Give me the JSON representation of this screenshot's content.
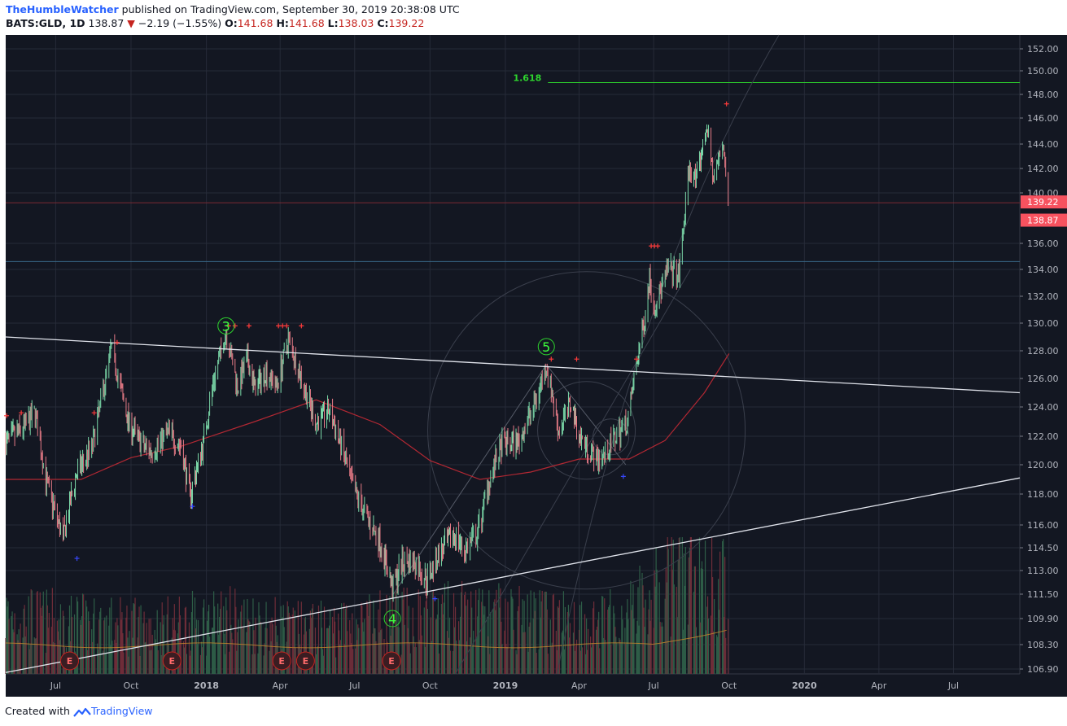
{
  "header": {
    "author": "TheHumbleWatcher",
    "published_text": " published on TradingView.com, September 30, 2019 20:38:08 UTC",
    "symbol": "BATS:GLD, 1D",
    "last": "138.87",
    "change": "−2.19 (−1.55%)",
    "o_label": "O:",
    "o_value": "141.68",
    "h_label": "H:",
    "h_value": "141.68",
    "l_label": "L:",
    "l_value": "138.03",
    "c_label": "C:",
    "c_value": "139.22"
  },
  "footer": {
    "created_with": "Created with",
    "brand": "TradingView"
  },
  "colors": {
    "background": "#131722",
    "up": "#7ad8a8",
    "down": "#e57a86",
    "vol_up": "#2e5d47",
    "vol_down": "#6e2d39",
    "trendline": "#e0e3eb",
    "ma": "#b22833",
    "fib": "#2ed52e",
    "wave_label": "#3cff3c",
    "hline_red": "#7a2a33",
    "hline_blue": "#3a6a8a",
    "last_price_bg": "#f7525f"
  },
  "chart_data": {
    "type": "candlestick",
    "title": "BATS:GLD, 1D",
    "x_range": [
      "2017-05-01",
      "2020-09-20"
    ],
    "x_tick_labels": [
      {
        "date": "2017-07-01",
        "label": "Jul"
      },
      {
        "date": "2017-10-01",
        "label": "Oct"
      },
      {
        "date": "2018-01-01",
        "label": "2018"
      },
      {
        "date": "2018-04-01",
        "label": "Apr"
      },
      {
        "date": "2018-07-01",
        "label": "Jul"
      },
      {
        "date": "2018-10-01",
        "label": "Oct"
      },
      {
        "date": "2019-01-01",
        "label": "2019"
      },
      {
        "date": "2019-04-01",
        "label": "Apr"
      },
      {
        "date": "2019-07-01",
        "label": "Jul"
      },
      {
        "date": "2019-10-01",
        "label": "Oct"
      },
      {
        "date": "2020-01-01",
        "label": "2020"
      },
      {
        "date": "2020-04-01",
        "label": "Apr"
      },
      {
        "date": "2020-07-01",
        "label": "Jul"
      }
    ],
    "y_ticks": [
      {
        "value": 152,
        "label": "152.00"
      },
      {
        "value": 150,
        "label": "150.00"
      },
      {
        "value": 148,
        "label": "148.00"
      },
      {
        "value": 146,
        "label": "146.00"
      },
      {
        "value": 144,
        "label": "144.00"
      },
      {
        "value": 142,
        "label": "142.00"
      },
      {
        "value": 140,
        "label": "140.00"
      },
      {
        "value": 136,
        "label": "136.00"
      },
      {
        "value": 134,
        "label": "134.00"
      },
      {
        "value": 132,
        "label": "132.00"
      },
      {
        "value": 130,
        "label": "130.00"
      },
      {
        "value": 128,
        "label": "128.00"
      },
      {
        "value": 126,
        "label": "126.00"
      },
      {
        "value": 124,
        "label": "124.00"
      },
      {
        "value": 122,
        "label": "122.00"
      },
      {
        "value": 120,
        "label": "120.00"
      },
      {
        "value": 118,
        "label": "118.00"
      },
      {
        "value": 116,
        "label": "116.00"
      },
      {
        "value": 114.5,
        "label": "114.50"
      },
      {
        "value": 113,
        "label": "113.00"
      },
      {
        "value": 111.5,
        "label": "111.50"
      },
      {
        "value": 109.9,
        "label": "109.90"
      },
      {
        "value": 108.3,
        "label": "108.30"
      },
      {
        "value": 106.9,
        "label": "106.90"
      }
    ],
    "price_path": [
      [
        "2017-05-01",
        121.6
      ],
      [
        "2017-05-20",
        122.4
      ],
      [
        "2017-06-06",
        123.6
      ],
      [
        "2017-06-20",
        118.7
      ],
      [
        "2017-07-10",
        115.1
      ],
      [
        "2017-07-26",
        119.3
      ],
      [
        "2017-08-15",
        121.3
      ],
      [
        "2017-09-07",
        128.2
      ],
      [
        "2017-09-28",
        122.9
      ],
      [
        "2017-10-16",
        121.3
      ],
      [
        "2017-10-27",
        120.9
      ],
      [
        "2017-11-15",
        122.3
      ],
      [
        "2017-12-01",
        121.3
      ],
      [
        "2017-12-12",
        117.9
      ],
      [
        "2017-12-27",
        121.2
      ],
      [
        "2018-01-10",
        125.9
      ],
      [
        "2018-01-25",
        129.4
      ],
      [
        "2018-02-08",
        125.4
      ],
      [
        "2018-02-20",
        127.4
      ],
      [
        "2018-03-01",
        125.3
      ],
      [
        "2018-03-15",
        126.5
      ],
      [
        "2018-03-28",
        125.5
      ],
      [
        "2018-04-11",
        128.9
      ],
      [
        "2018-04-30",
        125.4
      ],
      [
        "2018-05-15",
        122.9
      ],
      [
        "2018-05-31",
        123.8
      ],
      [
        "2018-06-14",
        121.4
      ],
      [
        "2018-06-29",
        118.4
      ],
      [
        "2018-07-18",
        116.3
      ],
      [
        "2018-08-01",
        114.9
      ],
      [
        "2018-08-16",
        111.9
      ],
      [
        "2018-08-30",
        113.7
      ],
      [
        "2018-09-13",
        113.5
      ],
      [
        "2018-09-27",
        112.4
      ],
      [
        "2018-10-10",
        113.9
      ],
      [
        "2018-10-31",
        115.4
      ],
      [
        "2018-11-12",
        114.3
      ],
      [
        "2018-11-28",
        115.4
      ],
      [
        "2018-12-12",
        118.9
      ],
      [
        "2018-12-28",
        121.4
      ],
      [
        "2019-01-17",
        121.6
      ],
      [
        "2019-02-07",
        124.4
      ],
      [
        "2019-02-20",
        127.0
      ],
      [
        "2019-03-07",
        122.4
      ],
      [
        "2019-03-22",
        124.3
      ],
      [
        "2019-04-02",
        121.9
      ],
      [
        "2019-04-22",
        120.4
      ],
      [
        "2019-05-03",
        120.7
      ],
      [
        "2019-05-15",
        121.9
      ],
      [
        "2019-05-31",
        123.1
      ],
      [
        "2019-06-07",
        126.0
      ],
      [
        "2019-06-20",
        130.4
      ],
      [
        "2019-06-26",
        133.4
      ],
      [
        "2019-07-02",
        131.1
      ],
      [
        "2019-07-19",
        134.1
      ],
      [
        "2019-08-01",
        133.5
      ],
      [
        "2019-08-13",
        142.0
      ],
      [
        "2019-08-22",
        141.0
      ],
      [
        "2019-09-04",
        145.5
      ],
      [
        "2019-09-12",
        141.1
      ],
      [
        "2019-09-24",
        144.1
      ],
      [
        "2019-09-30",
        139.2
      ]
    ],
    "volume_path": [
      [
        "2017-05-01",
        0.42
      ],
      [
        "2017-08-01",
        0.36
      ],
      [
        "2017-11-01",
        0.34
      ],
      [
        "2018-02-01",
        0.4
      ],
      [
        "2018-05-01",
        0.32
      ],
      [
        "2018-08-15",
        0.38
      ],
      [
        "2018-11-01",
        0.42
      ],
      [
        "2019-02-01",
        0.4
      ],
      [
        "2019-05-01",
        0.36
      ],
      [
        "2019-07-01",
        0.55
      ],
      [
        "2019-08-15",
        0.75
      ],
      [
        "2019-09-30",
        0.58
      ]
    ],
    "moving_average": [
      [
        "2017-05-01",
        119.0
      ],
      [
        "2017-08-01",
        119.0
      ],
      [
        "2017-10-01",
        120.5
      ],
      [
        "2017-12-01",
        121.3
      ],
      [
        "2018-03-01",
        123.0
      ],
      [
        "2018-05-15",
        124.5
      ],
      [
        "2018-08-01",
        122.8
      ],
      [
        "2018-10-01",
        120.3
      ],
      [
        "2018-12-01",
        119.0
      ],
      [
        "2019-02-01",
        119.5
      ],
      [
        "2019-04-01",
        120.4
      ],
      [
        "2019-06-01",
        120.4
      ],
      [
        "2019-07-15",
        121.7
      ],
      [
        "2019-09-01",
        125.0
      ],
      [
        "2019-10-01",
        127.8
      ]
    ],
    "volume_ma_level": 0.38,
    "trendlines": [
      {
        "name": "upper-trendline",
        "from": [
          "2017-05-01",
          129.0
        ],
        "to": [
          "2020-09-20",
          125.0
        ]
      },
      {
        "name": "lower-trendline",
        "from": [
          "2017-05-01",
          106.7
        ],
        "to": [
          "2020-09-20",
          119.1
        ]
      }
    ],
    "fib_level": {
      "label": "1.618",
      "value": 149.0,
      "from": "2019-02-22"
    },
    "horizontal_lines": [
      {
        "name": "close-price-line",
        "value": 139.22,
        "color": "#7a2a33"
      },
      {
        "name": "support-line",
        "value": 134.6,
        "color": "#3a6a8a"
      }
    ],
    "wave_labels": [
      {
        "label": "3",
        "date": "2018-01-25",
        "value": 129.8
      },
      {
        "label": "4",
        "date": "2018-08-16",
        "value": 109.9
      },
      {
        "label": "5",
        "date": "2019-02-20",
        "value": 128.3
      }
    ],
    "earnings_markers": [
      {
        "label": "E",
        "date": "2017-07-18"
      },
      {
        "label": "E",
        "date": "2017-11-20"
      },
      {
        "label": "E",
        "date": "2018-04-03"
      },
      {
        "label": "E",
        "date": "2018-05-02"
      },
      {
        "label": "E",
        "date": "2018-08-15"
      }
    ],
    "red_cross_markers": [
      [
        "2017-05-02",
        123.4
      ],
      [
        "2017-05-20",
        123.6
      ],
      [
        "2017-08-17",
        123.6
      ],
      [
        "2017-09-14",
        128.6
      ],
      [
        "2018-01-28",
        129.8
      ],
      [
        "2018-02-05",
        129.8
      ],
      [
        "2018-02-22",
        129.8
      ],
      [
        "2018-03-30",
        129.8
      ],
      [
        "2018-04-04",
        129.8
      ],
      [
        "2018-04-09",
        129.8
      ],
      [
        "2018-04-27",
        129.8
      ],
      [
        "2019-02-26",
        127.4
      ],
      [
        "2019-03-29",
        127.4
      ],
      [
        "2019-06-10",
        127.4
      ],
      [
        "2019-06-28",
        135.8
      ],
      [
        "2019-07-02",
        135.8
      ],
      [
        "2019-07-06",
        135.8
      ],
      [
        "2019-09-28",
        147.2
      ]
    ],
    "blue_cross_markers": [
      [
        "2017-07-27",
        113.8
      ],
      [
        "2017-12-15",
        117.2
      ],
      [
        "2018-10-07",
        111.2
      ],
      [
        "2019-05-25",
        119.2
      ]
    ],
    "price_labels": [
      {
        "value": 139.22,
        "label": "139.22"
      },
      {
        "value": 138.87,
        "label": "138.87"
      }
    ]
  }
}
